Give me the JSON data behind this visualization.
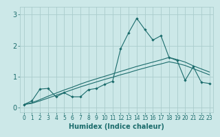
{
  "xlabel": "Humidex (Indice chaleur)",
  "bg_color": "#cce8e8",
  "grid_color": "#aacccc",
  "line_color": "#1a6b6b",
  "xlim": [
    -0.5,
    23.5
  ],
  "ylim": [
    -0.15,
    3.25
  ],
  "xticks": [
    0,
    1,
    2,
    3,
    4,
    5,
    6,
    7,
    8,
    9,
    10,
    11,
    12,
    13,
    14,
    15,
    16,
    17,
    18,
    19,
    20,
    21,
    22,
    23
  ],
  "yticks": [
    0,
    1,
    2,
    3
  ],
  "line1_x": [
    0,
    1,
    2,
    3,
    4,
    5,
    6,
    7,
    8,
    9,
    10,
    11,
    12,
    13,
    14,
    15,
    16,
    17,
    18,
    19,
    20,
    21,
    22,
    23
  ],
  "line1_y": [
    0.1,
    0.22,
    0.6,
    0.62,
    0.35,
    0.48,
    0.35,
    0.35,
    0.58,
    0.62,
    0.75,
    0.85,
    1.9,
    2.42,
    2.88,
    2.52,
    2.18,
    2.32,
    1.62,
    1.52,
    0.88,
    1.32,
    0.82,
    0.78
  ],
  "line2_x": [
    0,
    1,
    2,
    3,
    4,
    5,
    6,
    7,
    8,
    9,
    10,
    11,
    12,
    13,
    14,
    15,
    16,
    17,
    18,
    19,
    20,
    21,
    22,
    23
  ],
  "line2_y": [
    0.1,
    0.16,
    0.26,
    0.37,
    0.47,
    0.57,
    0.66,
    0.76,
    0.85,
    0.93,
    1.01,
    1.09,
    1.17,
    1.25,
    1.33,
    1.4,
    1.47,
    1.54,
    1.62,
    1.55,
    1.47,
    1.35,
    1.25,
    1.15
  ],
  "line3_x": [
    0,
    1,
    2,
    3,
    4,
    5,
    6,
    7,
    8,
    9,
    10,
    11,
    12,
    13,
    14,
    15,
    16,
    17,
    18,
    19,
    20,
    21,
    22,
    23
  ],
  "line3_y": [
    0.1,
    0.14,
    0.22,
    0.31,
    0.4,
    0.49,
    0.58,
    0.67,
    0.75,
    0.83,
    0.91,
    0.98,
    1.06,
    1.13,
    1.21,
    1.28,
    1.35,
    1.41,
    1.48,
    1.43,
    1.36,
    1.26,
    1.16,
    1.06
  ]
}
